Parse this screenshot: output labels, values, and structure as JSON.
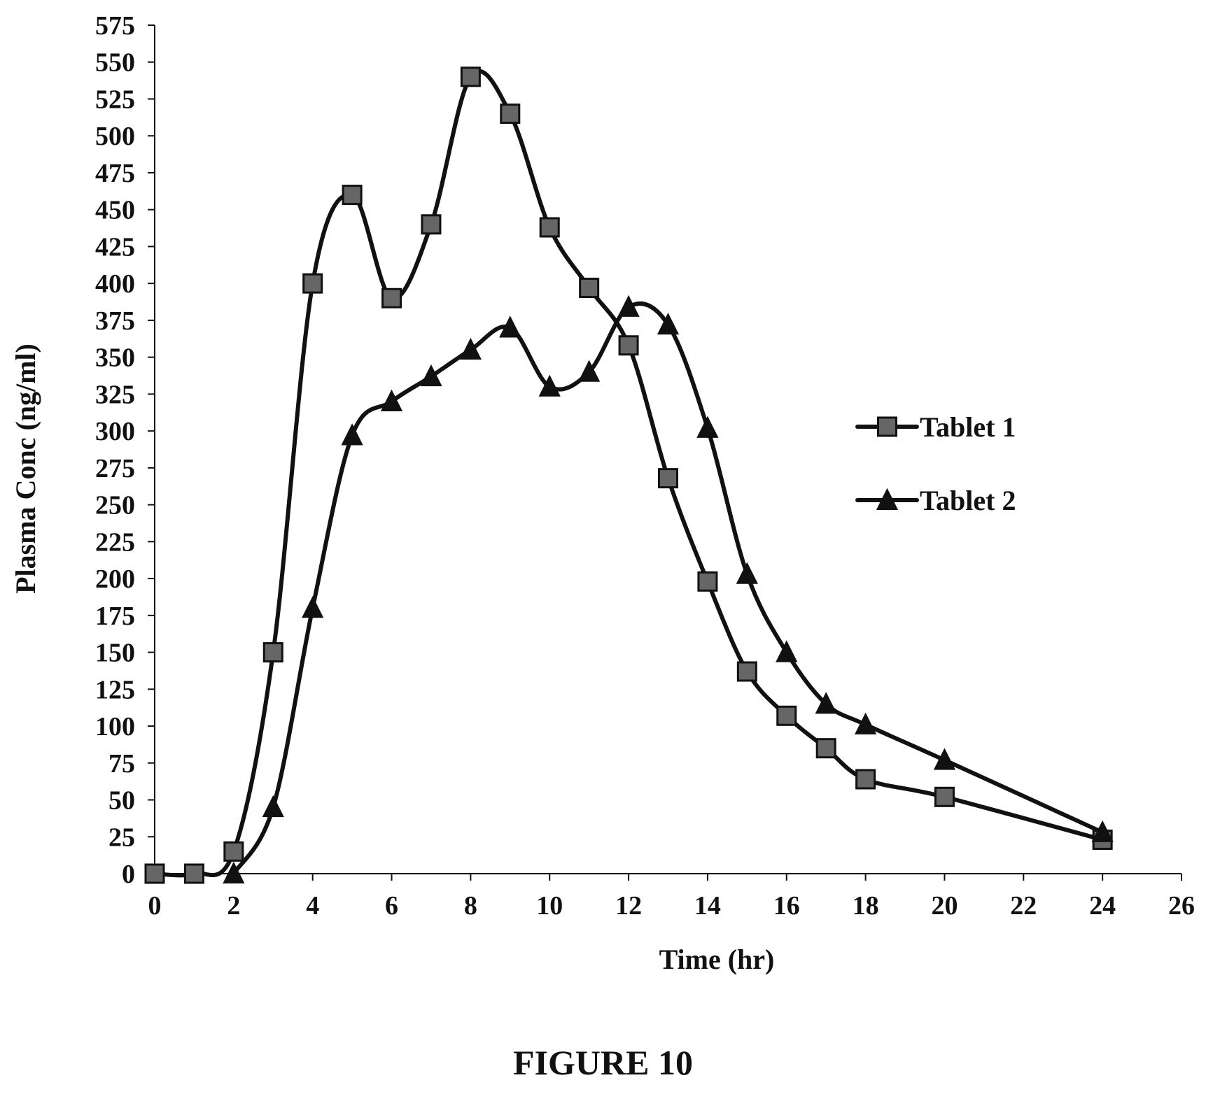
{
  "figure_label": "FIGURE 10",
  "chart_data": {
    "type": "line",
    "title": "",
    "xlabel": "Time (hr)",
    "ylabel": "Plasma Conc (ng/ml)",
    "xlim": [
      0,
      26
    ],
    "ylim": [
      0,
      575
    ],
    "x_ticks": [
      0,
      2,
      4,
      6,
      8,
      10,
      12,
      14,
      16,
      18,
      20,
      22,
      24,
      26
    ],
    "y_ticks": [
      0,
      25,
      50,
      75,
      100,
      125,
      150,
      175,
      200,
      225,
      250,
      275,
      300,
      325,
      350,
      375,
      400,
      425,
      450,
      475,
      500,
      525,
      550,
      575
    ],
    "grid": false,
    "legend": "right",
    "line_color": "#111111",
    "series": [
      {
        "name": "Tablet 1",
        "marker": "square",
        "x": [
          0,
          1,
          2,
          3,
          4,
          5,
          6,
          7,
          8,
          9,
          10,
          11,
          12,
          13,
          14,
          15,
          16,
          17,
          18,
          20,
          24
        ],
        "values": [
          0,
          0,
          15,
          150,
          400,
          460,
          390,
          440,
          540,
          515,
          438,
          397,
          358,
          268,
          198,
          137,
          107,
          85,
          64,
          52,
          23
        ]
      },
      {
        "name": "Tablet 2",
        "marker": "triangle",
        "x": [
          2,
          3,
          4,
          5,
          6,
          7,
          8,
          9,
          10,
          11,
          12,
          13,
          14,
          15,
          16,
          17,
          18,
          20,
          24
        ],
        "values": [
          0,
          45,
          180,
          297,
          320,
          337,
          355,
          370,
          330,
          340,
          384,
          372,
          302,
          203,
          150,
          115,
          101,
          77,
          28
        ]
      }
    ]
  }
}
